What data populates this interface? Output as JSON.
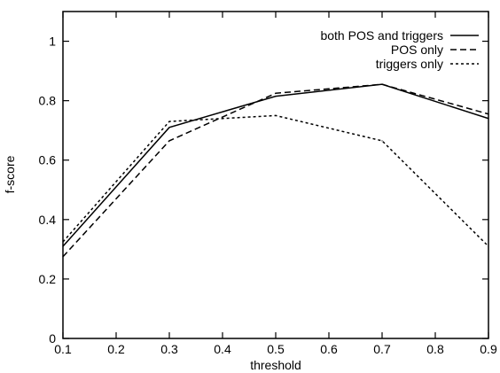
{
  "chart_data": {
    "type": "line",
    "title": "",
    "xlabel": "threshold",
    "ylabel": "f-score",
    "xlim": [
      0.1,
      0.9
    ],
    "ylim": [
      0,
      1.1
    ],
    "x_ticks": [
      "0.1",
      "0.2",
      "0.3",
      "0.4",
      "0.5",
      "0.6",
      "0.7",
      "0.8",
      "0.9"
    ],
    "y_ticks": [
      "0",
      "0.2",
      "0.4",
      "0.6",
      "0.8",
      "1"
    ],
    "grid": false,
    "legend_position": "top-right",
    "x": [
      0.1,
      0.3,
      0.5,
      0.7,
      0.9
    ],
    "series": [
      {
        "name": "both POS and triggers",
        "line_style": "solid",
        "values": [
          0.31,
          0.71,
          0.815,
          0.855,
          0.74
        ]
      },
      {
        "name": "POS only",
        "line_style": "dashed",
        "values": [
          0.275,
          0.665,
          0.825,
          0.855,
          0.755
        ]
      },
      {
        "name": "triggers only",
        "line_style": "dotted",
        "values": [
          0.325,
          0.73,
          0.75,
          0.665,
          0.31
        ]
      }
    ]
  }
}
